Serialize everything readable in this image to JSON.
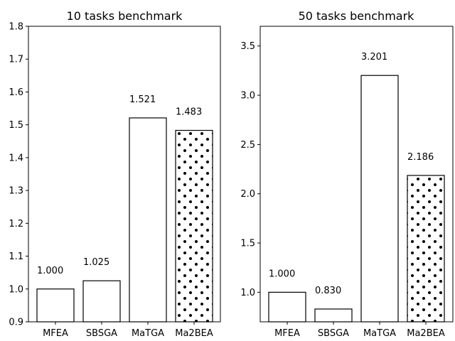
{
  "chart_data": [
    {
      "type": "bar",
      "title": "10 tasks benchmark",
      "xlabel": "",
      "ylabel": "",
      "categories": [
        "MFEA",
        "SBSGA",
        "MaTGA",
        "Ma2BEA"
      ],
      "values": [
        1.0,
        1.025,
        1.521,
        1.483
      ],
      "value_labels": [
        "1.000",
        "1.025",
        "1.521",
        "1.483"
      ],
      "hatched": [
        false,
        false,
        false,
        true
      ],
      "ylim": [
        0.9,
        1.8
      ],
      "yticks": [
        0.9,
        1.0,
        1.1,
        1.2,
        1.3,
        1.4,
        1.5,
        1.6,
        1.7,
        1.8
      ],
      "ytick_labels": [
        "0.9",
        "1.0",
        "1.1",
        "1.2",
        "1.3",
        "1.4",
        "1.5",
        "1.6",
        "1.7",
        "1.8"
      ],
      "grid": false
    },
    {
      "type": "bar",
      "title": "50 tasks benchmark",
      "xlabel": "",
      "ylabel": "",
      "categories": [
        "MFEA",
        "SBSGA",
        "MaTGA",
        "Ma2BEA"
      ],
      "values": [
        1.0,
        0.83,
        3.201,
        2.186
      ],
      "value_labels": [
        "1.000",
        "0.830",
        "3.201",
        "2.186"
      ],
      "hatched": [
        false,
        false,
        false,
        true
      ],
      "ylim": [
        0.7,
        3.7
      ],
      "yticks": [
        1.0,
        1.5,
        2.0,
        2.5,
        3.0,
        3.5
      ],
      "ytick_labels": [
        "1.0",
        "1.5",
        "2.0",
        "2.5",
        "3.0",
        "3.5"
      ],
      "grid": false
    }
  ],
  "colors": {
    "bar_fill": "#ffffff",
    "bar_edge": "#000000",
    "hatch_dot": "#000000"
  }
}
